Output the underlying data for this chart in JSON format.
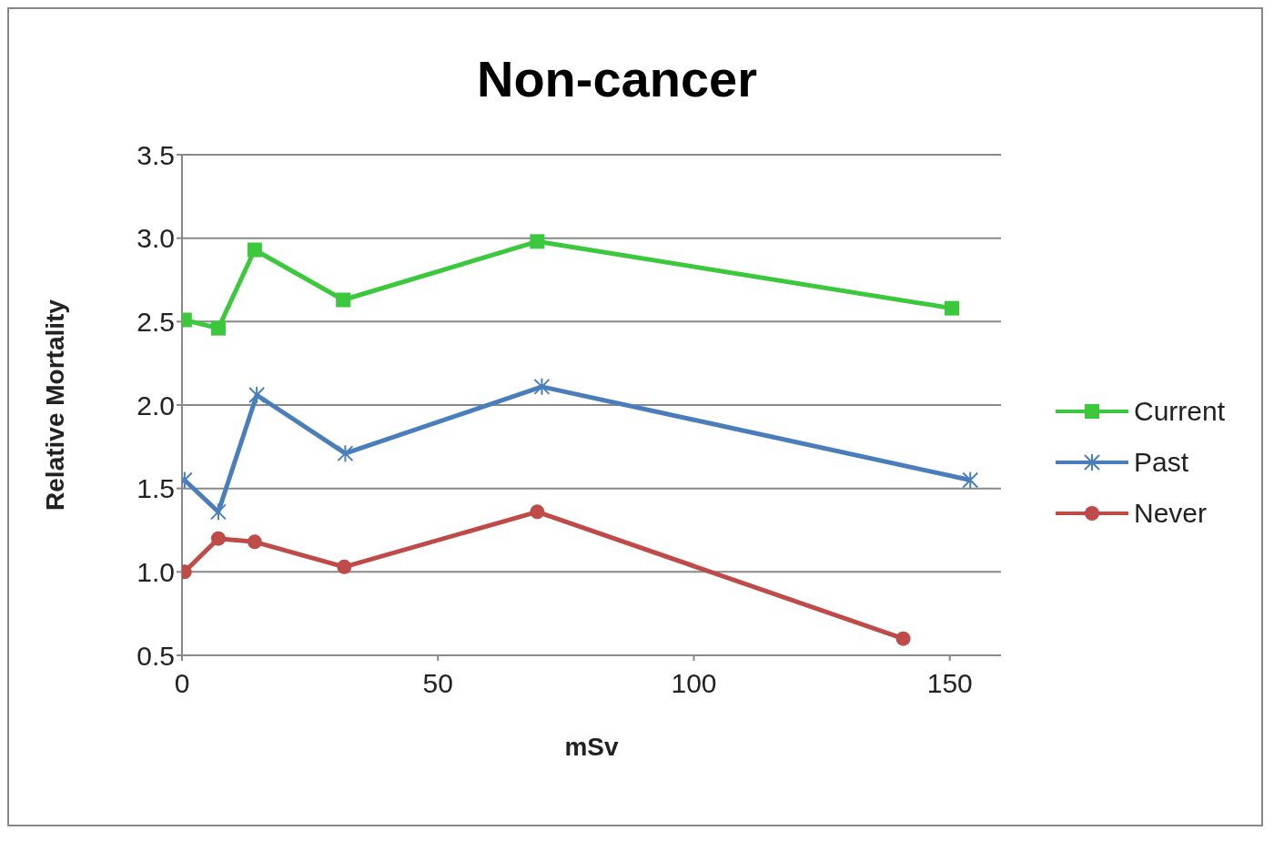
{
  "chart_data": {
    "type": "line",
    "title": "Non-cancer",
    "xlabel": "mSv",
    "ylabel": "Relative Mortality",
    "xlim": [
      0,
      160
    ],
    "xticks": [
      0,
      50,
      100,
      150
    ],
    "ylim": [
      0.5,
      3.5
    ],
    "yticks": [
      {
        "value": 0.5,
        "label": "0.5"
      },
      {
        "value": 1,
        "label": "1.0"
      },
      {
        "value": 1.5,
        "label": "1.5"
      },
      {
        "value": 2,
        "label": "2.0"
      },
      {
        "value": 2.5,
        "label": "2.5"
      },
      {
        "value": 3,
        "label": "3.0"
      },
      {
        "value": 3.5,
        "label": "3.5"
      }
    ],
    "grid": "y",
    "legend": "right",
    "line_style": "solid",
    "series": [
      {
        "name": "Current",
        "color": "#3cc83c",
        "marker": "square",
        "x": [
          0.5,
          7.1,
          14.2,
          31.5,
          69.4,
          150.4
        ],
        "values": [
          2.51,
          2.46,
          2.93,
          2.63,
          2.98,
          2.58
        ]
      },
      {
        "name": "Past",
        "color": "#4a7ebb",
        "marker": "cross",
        "x": [
          0.5,
          7.1,
          14.6,
          31.9,
          70.3,
          154
        ],
        "values": [
          1.55,
          1.36,
          2.06,
          1.71,
          2.11,
          1.55
        ]
      },
      {
        "name": "Never",
        "color": "#be4b48",
        "marker": "circle",
        "x": [
          0.5,
          7.1,
          14.2,
          31.7,
          69.4,
          140.9
        ],
        "values": [
          1.0,
          1.2,
          1.18,
          1.03,
          1.36,
          0.6
        ]
      }
    ]
  }
}
